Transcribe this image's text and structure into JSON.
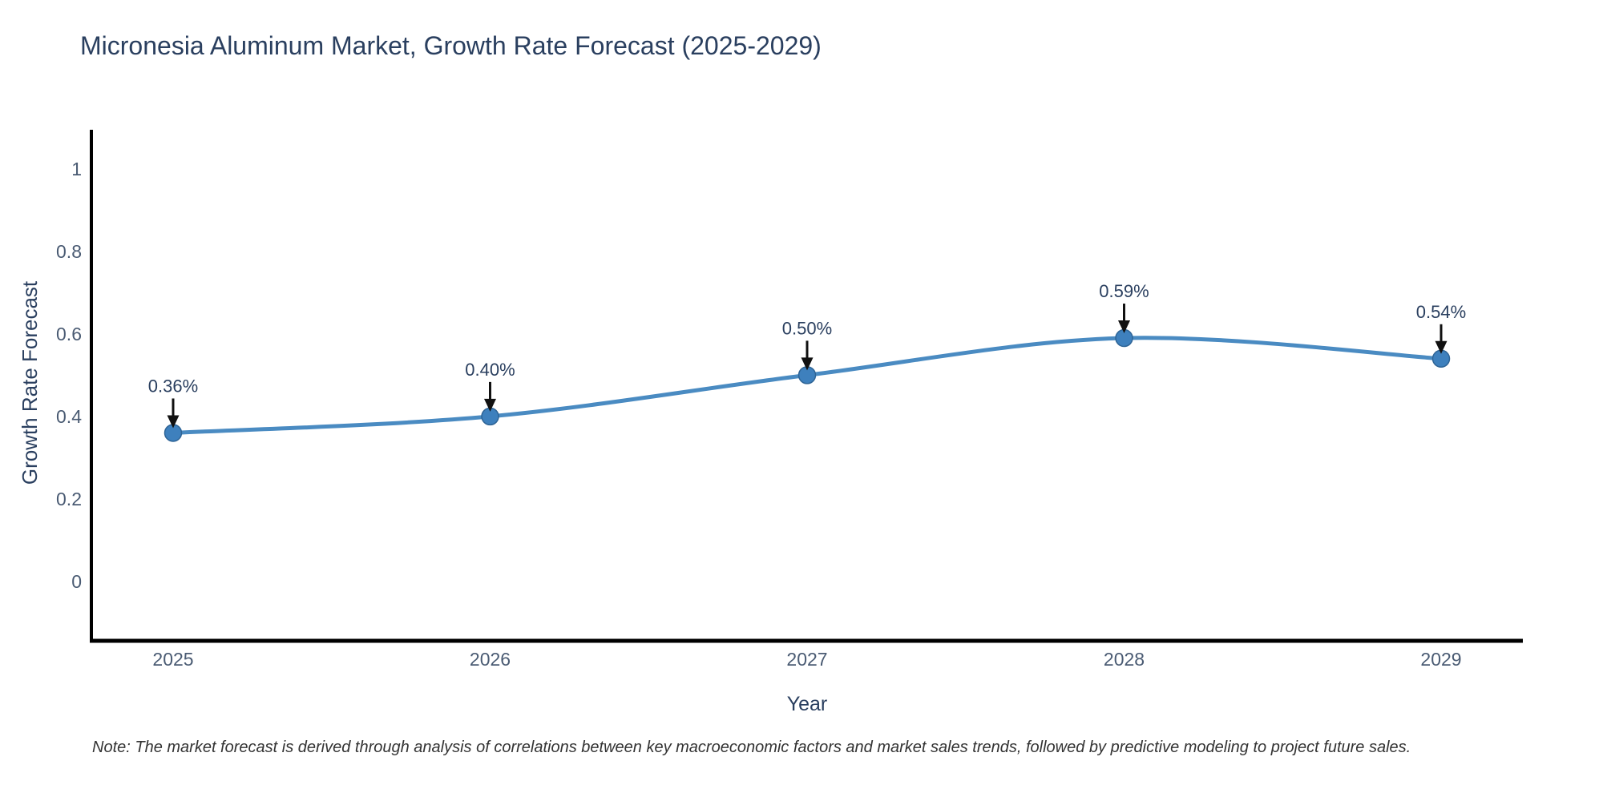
{
  "chart_data": {
    "type": "line",
    "title": "Micronesia Aluminum Market, Growth Rate Forecast (2025-2029)",
    "xlabel": "Year",
    "ylabel": "Growth Rate Forecast",
    "note": "Note: The market forecast is derived through analysis of correlations between key macroeconomic factors and market sales trends, followed by predictive modeling to project future sales.",
    "x": [
      2025,
      2026,
      2027,
      2028,
      2029
    ],
    "x_tick_labels": [
      "2025",
      "2026",
      "2027",
      "2028",
      "2029"
    ],
    "values": [
      0.36,
      0.4,
      0.5,
      0.59,
      0.54
    ],
    "point_labels": [
      "0.36%",
      "0.40%",
      "0.50%",
      "0.59%",
      "0.54%"
    ],
    "y_ticks": [
      0,
      0.2,
      0.4,
      0.6,
      0.8,
      1
    ],
    "y_tick_labels": [
      "0",
      "0.2",
      "0.4",
      "0.6",
      "0.8",
      "1"
    ],
    "ylim": [
      -0.144,
      1.095
    ],
    "grid": false,
    "line_shape": "spline",
    "legend": "none",
    "annotation_arrows": true,
    "colors": {
      "line": "#4a8bc2",
      "marker": "#3e80bd",
      "marker_edge": "#2e6496",
      "axis": "#000000",
      "arrow": "#111111",
      "title_text": "#2a3f5f",
      "tick_text": "#4a5b73",
      "note_text": "#333333",
      "background": "#ffffff"
    }
  }
}
